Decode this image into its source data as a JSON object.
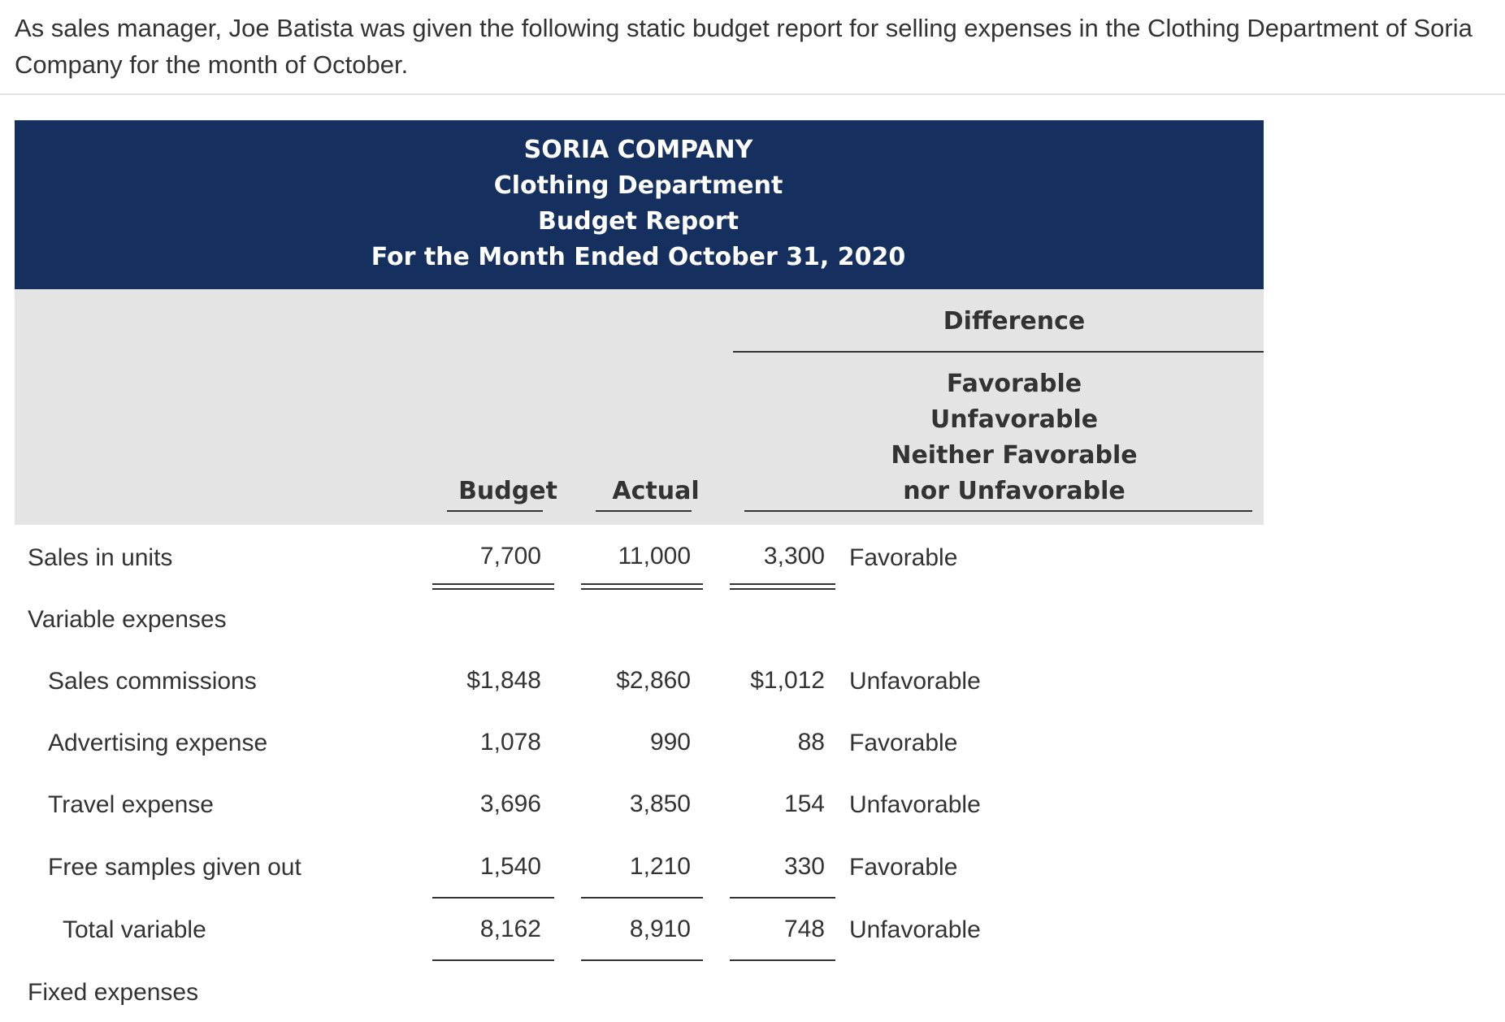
{
  "intro_text": "As sales manager, Joe Batista was given the following static budget report for selling expenses in the Clothing Department of Soria Company for the month of October.",
  "report_title": {
    "company": "SORIA COMPANY",
    "department": "Clothing Department",
    "report": "Budget Report",
    "period": "For the Month Ended October 31, 2020"
  },
  "columns": {
    "budget": "Budget",
    "actual": "Actual",
    "difference": "Difference",
    "difference_options": [
      "Favorable",
      "Unfavorable",
      "Neither Favorable",
      "nor Unfavorable"
    ]
  },
  "rows": {
    "sales_units": {
      "label": "Sales in units",
      "budget": "7,700",
      "actual": "11,000",
      "difference": "3,300",
      "status": "Favorable"
    },
    "variable_heading": {
      "label": "Variable expenses"
    },
    "sales_commissions": {
      "label": "Sales commissions",
      "budget": "$1,848",
      "actual": "$2,860",
      "difference": "$1,012",
      "status": "Unfavorable"
    },
    "advertising": {
      "label": "Advertising expense",
      "budget": "1,078",
      "actual": "990",
      "difference": "88",
      "status": "Favorable"
    },
    "travel": {
      "label": "Travel expense",
      "budget": "3,696",
      "actual": "3,850",
      "difference": "154",
      "status": "Unfavorable"
    },
    "free_samples": {
      "label": "Free samples given out",
      "budget": "1,540",
      "actual": "1,210",
      "difference": "330",
      "status": "Favorable"
    },
    "total_variable": {
      "label": "Total variable",
      "budget": "8,162",
      "actual": "8,910",
      "difference": "748",
      "status": "Unfavorable"
    },
    "fixed_heading": {
      "label": "Fixed expenses"
    }
  },
  "colors": {
    "title_band": "#15305f",
    "header_band": "#e4e4e4",
    "text": "#333333"
  }
}
